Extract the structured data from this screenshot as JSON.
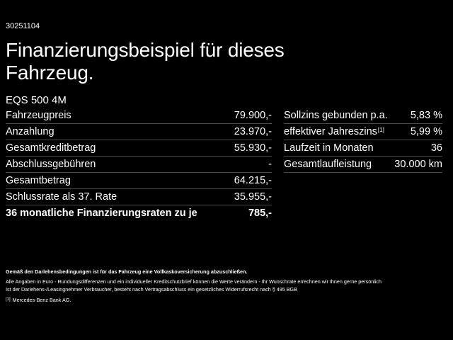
{
  "reference_number": "30251104",
  "headline": "Finanzierungsbeispiel für dieses Fahrzeug.",
  "model": "EQS 500 4M",
  "left_table": [
    {
      "label": "Fahrzeugpreis",
      "value": "79.900,-"
    },
    {
      "label": "Anzahlung",
      "value": "23.970,-"
    },
    {
      "label": "Gesamtkreditbetrag",
      "value": "55.930,-"
    },
    {
      "label": "Abschlussgebühren",
      "value": "-"
    },
    {
      "label": "Gesamtbetrag",
      "value": "64.215,-"
    },
    {
      "label": "Schlussrate als 37. Rate",
      "value": "35.955,-"
    },
    {
      "label": "36 monatliche Finanzierungsraten zu je",
      "value": "785,-"
    }
  ],
  "right_table": [
    {
      "label": "Sollzins gebunden p.a.",
      "value": "5,83 %"
    },
    {
      "label": "effektiver Jahreszins",
      "footnote": "[1]",
      "value": "5,99 %"
    },
    {
      "label": "Laufzeit in Monaten",
      "value": "36"
    },
    {
      "label": "Gesamtlaufleistung",
      "value": "30.000 km"
    }
  ],
  "notes": {
    "insurance": "Gemäß den Darlehensbedingungen ist für das Fahrzeug eine Vollkaskoversicherung abzuschließen.",
    "disclaimer_line1": "Alle Angaben in Euro - Rundungsdifferenzen und ein individueller Kreditschutzbrief können die Werte verändern - Ihr Wunschrate errechnen wir Ihnen gerne persönlich",
    "disclaimer_line2": "Ist der Darlehens-/Leasingnehmer Verbraucher, besteht nach Vertragsabschluss ein gesetzliches Widerrufsrecht nach § 495 BGB",
    "footnote_marker": "[1]",
    "footnote_text": "Mercedes-Benz Bank AG."
  },
  "colors": {
    "background": "#000000",
    "text": "#ffffff",
    "divider": "#4a4a4a"
  }
}
